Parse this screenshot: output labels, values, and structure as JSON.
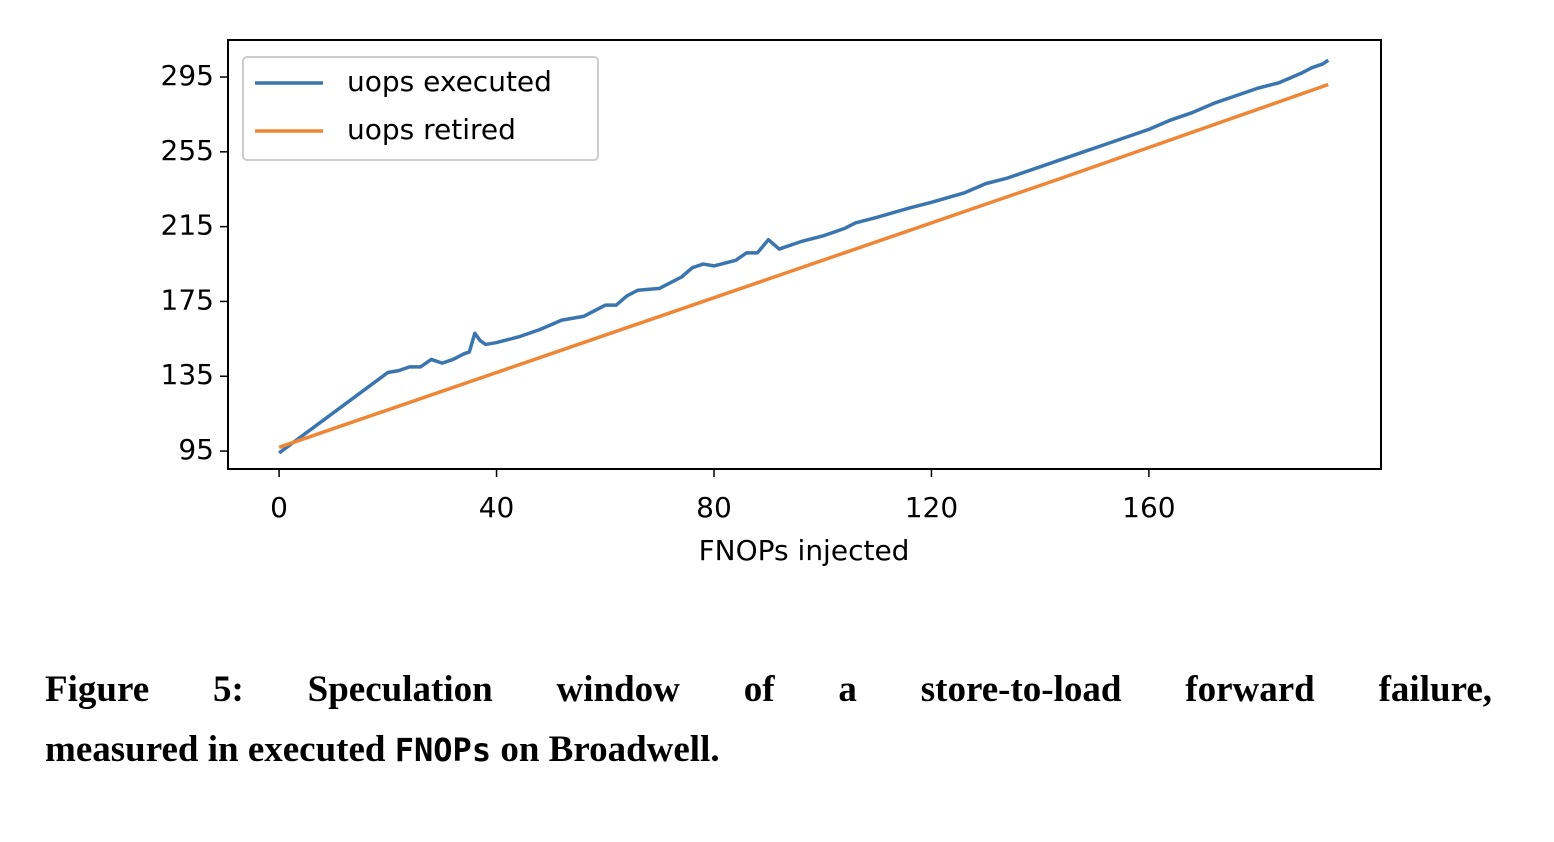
{
  "chart_data": {
    "type": "line",
    "xlabel": "FNOPs injected",
    "xlim": [
      -9.4,
      202.7
    ],
    "xticks": [
      0,
      40,
      80,
      120,
      160
    ],
    "ylim": [
      85.4,
      314.8
    ],
    "yticks": [
      95,
      135,
      175,
      215,
      255,
      295
    ],
    "grid": false,
    "legend": "upper left",
    "series": [
      {
        "name": "uops executed",
        "color": "#3b75af",
        "x": [
          0,
          20,
          22,
          24,
          26,
          28,
          30,
          32,
          34,
          35,
          36,
          37,
          38,
          40,
          44,
          48,
          52,
          56,
          58,
          60,
          62,
          64,
          66,
          70,
          72,
          74,
          76,
          78,
          80,
          84,
          86,
          88,
          90,
          92,
          96,
          100,
          104,
          106,
          110,
          116,
          120,
          126,
          130,
          134,
          136,
          140,
          144,
          148,
          152,
          156,
          160,
          164,
          168,
          172,
          176,
          180,
          184,
          188,
          190,
          192,
          193
        ],
        "values": [
          94,
          137,
          138,
          140,
          140,
          144,
          142,
          144,
          147,
          148,
          158,
          154,
          152,
          153,
          156,
          160,
          165,
          167,
          170,
          173,
          173,
          178,
          181,
          182,
          185,
          188,
          193,
          195,
          194,
          197,
          201,
          201,
          208,
          203,
          207,
          210,
          214,
          217,
          220,
          225,
          228,
          233,
          238,
          241,
          243,
          247,
          251,
          255,
          259,
          263,
          267,
          272,
          276,
          281,
          285,
          289,
          292,
          297,
          300,
          302,
          304
        ]
      },
      {
        "name": "uops retired",
        "color": "#ef8636",
        "x": [
          0,
          48,
          96,
          144,
          193
        ],
        "values": [
          97,
          145,
          193,
          241,
          291
        ]
      }
    ]
  },
  "caption": {
    "line1": "Figure 5: Speculation window of a store-to-load forward failure,",
    "line2_before": "measured in executed",
    "code": "FNOPs",
    "line2_after": "on Broadwell."
  }
}
